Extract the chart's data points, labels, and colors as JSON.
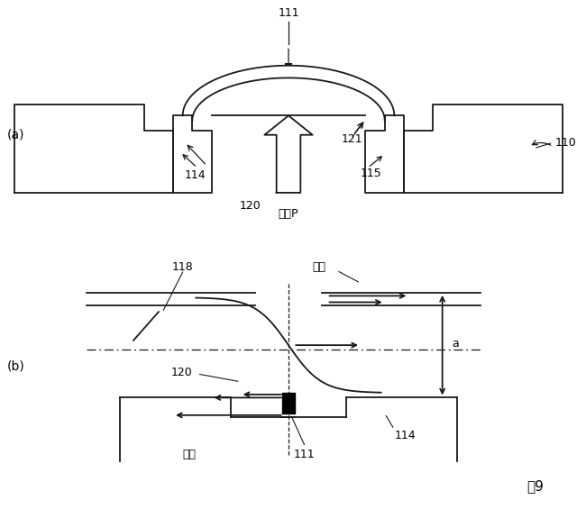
{
  "bg_color": "#ffffff",
  "line_color": "#1a1a1a",
  "fig_label": "围9",
  "panel_a_label": "(a)",
  "panel_b_label": "(b)",
  "label_111_a": "111",
  "label_110": "110",
  "label_114_a": "114",
  "label_120_a": "120",
  "label_121": "121",
  "label_115": "115",
  "label_P": "圩力P",
  "label_118": "118",
  "label_tension": "引張",
  "label_a": "a",
  "label_120_b": "120",
  "label_114_b": "114",
  "label_compress": "圩縮",
  "label_111_b": "111"
}
